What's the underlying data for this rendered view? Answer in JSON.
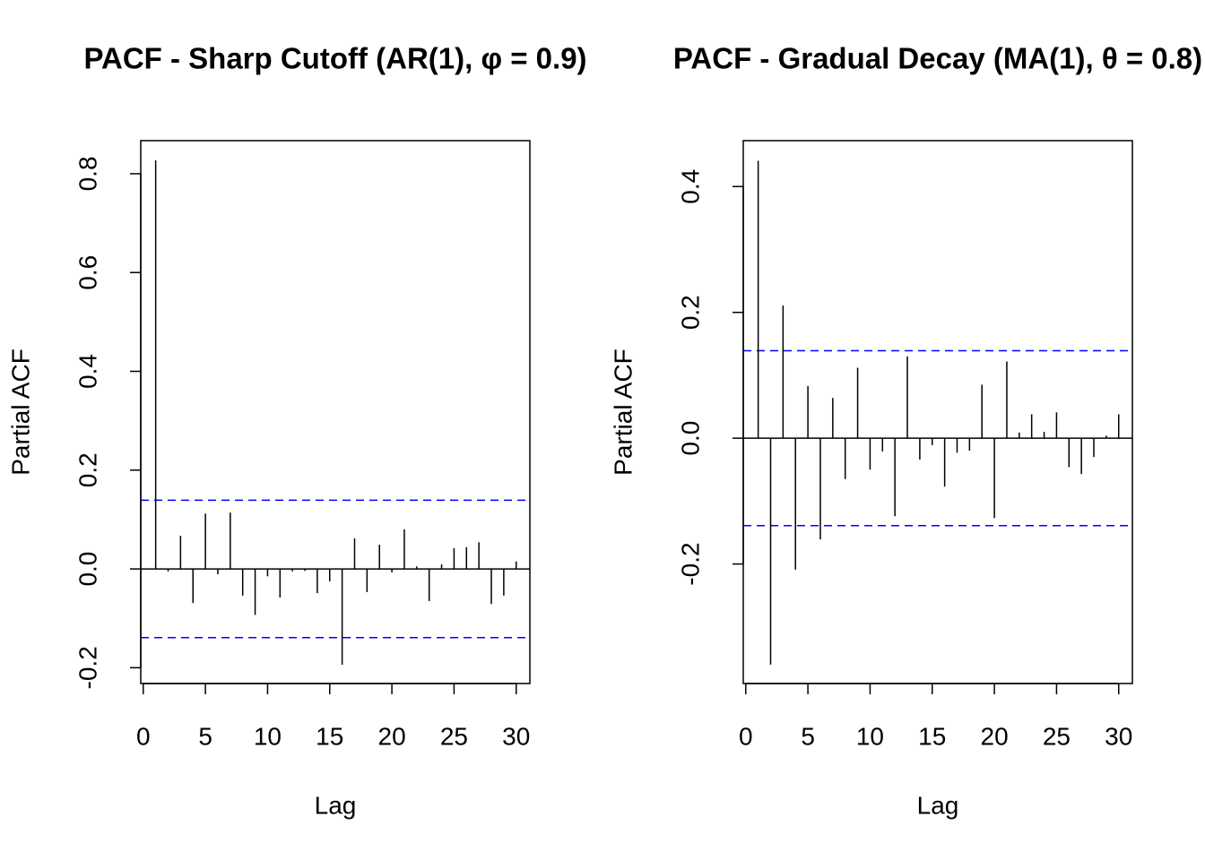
{
  "chart_data": [
    {
      "type": "bar",
      "title": "PACF - Sharp Cutoff (AR(1), φ = 0.9)",
      "x_label": "Lag",
      "y_label": "Partial ACF",
      "x": [
        1,
        2,
        3,
        4,
        5,
        6,
        7,
        8,
        9,
        10,
        11,
        12,
        13,
        14,
        15,
        16,
        17,
        18,
        19,
        20,
        21,
        22,
        23,
        24,
        25,
        26,
        27,
        28,
        29,
        30
      ],
      "values": [
        0.827,
        -0.005,
        0.067,
        -0.069,
        0.112,
        -0.011,
        0.114,
        -0.054,
        -0.093,
        -0.015,
        -0.058,
        -0.005,
        -0.004,
        -0.049,
        -0.025,
        -0.194,
        0.062,
        -0.047,
        0.049,
        -0.007,
        0.08,
        0.005,
        -0.065,
        0.009,
        0.042,
        0.044,
        0.054,
        -0.071,
        -0.054,
        0.015
      ],
      "color": "#000000",
      "ci_lines": [
        0.139,
        -0.139
      ],
      "ci_color": "#0000ff",
      "xlim": [
        -0.2,
        31.1
      ],
      "xticks": [
        0,
        5,
        10,
        15,
        20,
        25,
        30
      ],
      "ylim": [
        -0.232,
        0.867
      ],
      "yticks": [
        {
          "value": -0.2,
          "label": "-0.2"
        },
        {
          "value": 0,
          "label": "0.0"
        },
        {
          "value": 0.2,
          "label": "0.2"
        },
        {
          "value": 0.4,
          "label": "0.4"
        },
        {
          "value": 0.6,
          "label": "0.6"
        },
        {
          "value": 0.8,
          "label": "0.8"
        }
      ]
    },
    {
      "type": "bar",
      "title": "PACF - Gradual Decay (MA(1), θ = 0.8)",
      "x_label": "Lag",
      "y_label": "Partial ACF",
      "x": [
        1,
        2,
        3,
        4,
        5,
        6,
        7,
        8,
        9,
        10,
        11,
        12,
        13,
        14,
        15,
        16,
        17,
        18,
        19,
        20,
        21,
        22,
        23,
        24,
        25,
        26,
        27,
        28,
        29,
        30
      ],
      "values": [
        0.441,
        -0.36,
        0.211,
        -0.209,
        0.083,
        -0.161,
        0.064,
        -0.065,
        0.112,
        -0.05,
        -0.021,
        -0.124,
        0.13,
        -0.034,
        -0.011,
        -0.077,
        -0.023,
        -0.02,
        0.085,
        -0.127,
        0.122,
        0.009,
        0.038,
        0.01,
        0.041,
        -0.046,
        -0.057,
        -0.03,
        0.004,
        0.038
      ],
      "color": "#000000",
      "ci_lines": [
        0.139,
        -0.139
      ],
      "ci_color": "#0000ff",
      "xlim": [
        -0.2,
        31.1
      ],
      "xticks": [
        0,
        5,
        10,
        15,
        20,
        25,
        30
      ],
      "ylim": [
        -0.39,
        0.473
      ],
      "yticks": [
        {
          "value": -0.2,
          "label": "-0.2"
        },
        {
          "value": 0,
          "label": "0.0"
        },
        {
          "value": 0.2,
          "label": "0.2"
        },
        {
          "value": 0.4,
          "label": "0.4"
        }
      ]
    }
  ]
}
